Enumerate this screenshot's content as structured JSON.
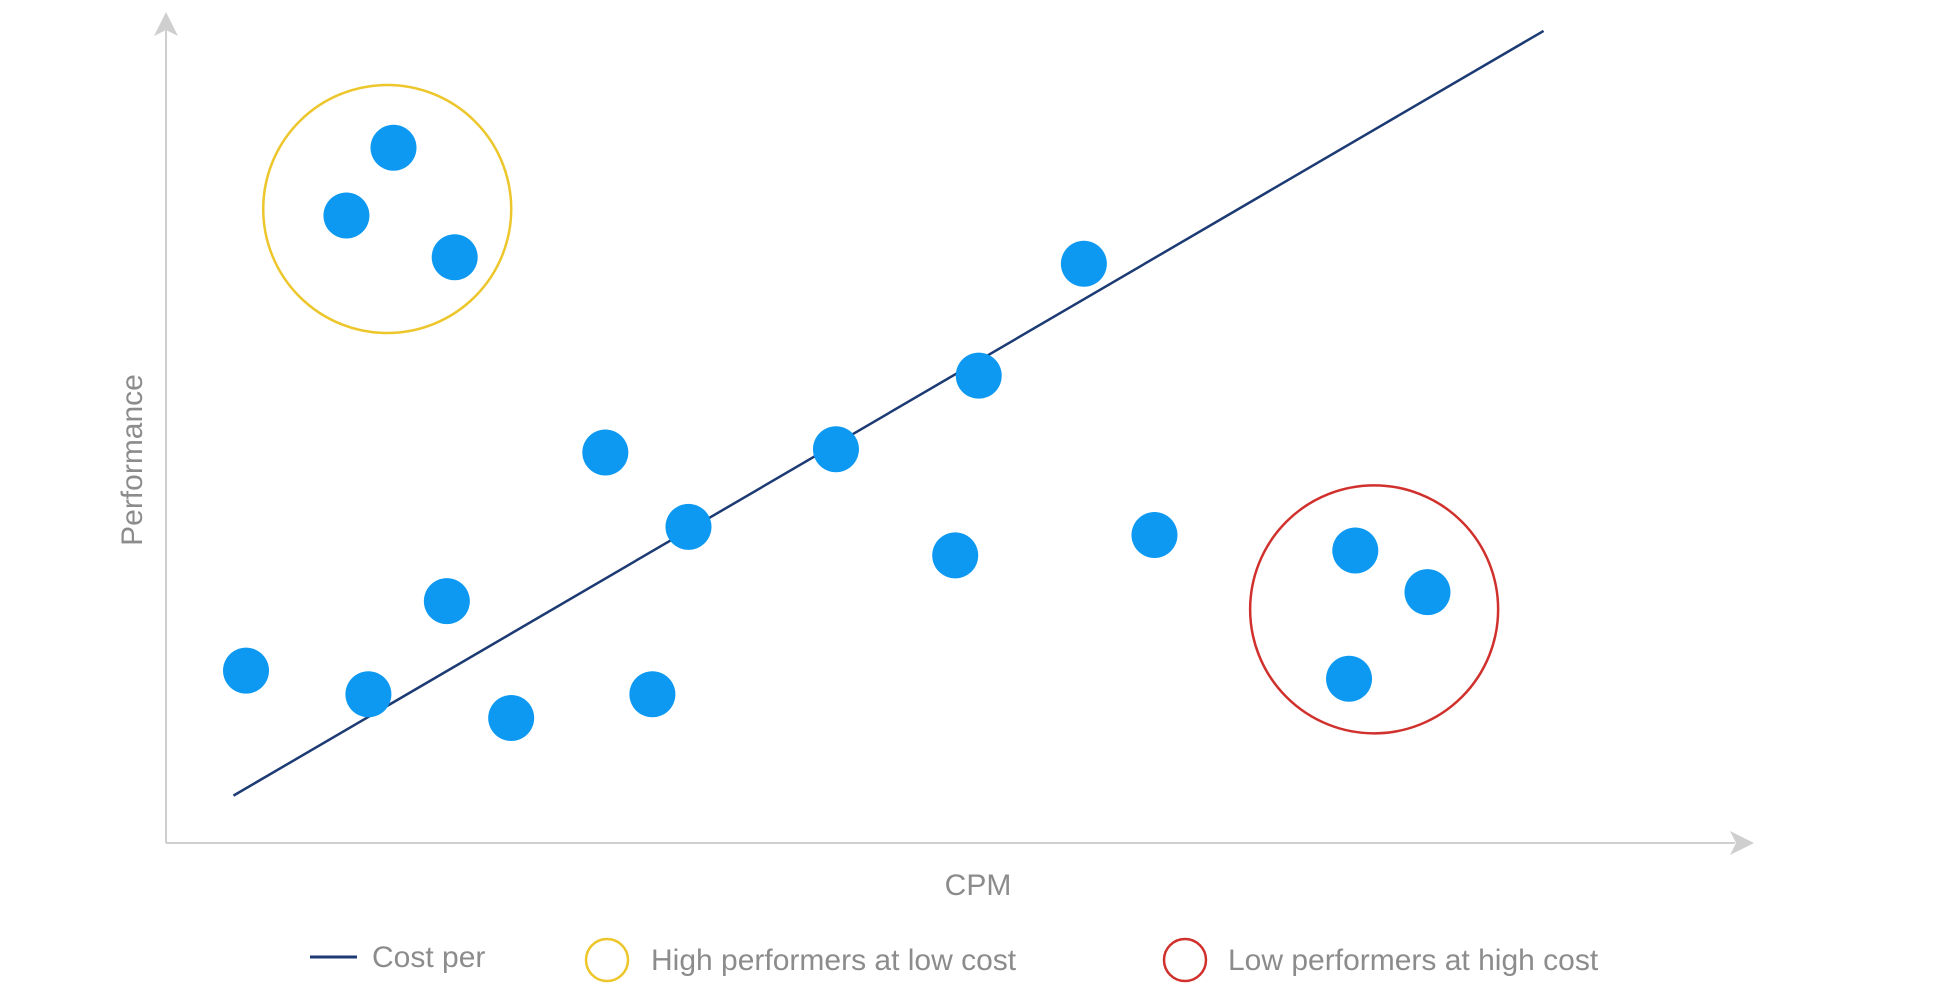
{
  "chart_data": {
    "type": "scatter",
    "title": "",
    "xlabel": "CPM",
    "ylabel": "Performance",
    "xlim": [
      0,
      100
    ],
    "ylim": [
      0,
      100
    ],
    "grid": false,
    "legend_placement": "bottom",
    "points": [
      {
        "x": 5.1,
        "y": 21.1
      },
      {
        "x": 12.9,
        "y": 18.2
      },
      {
        "x": 17.9,
        "y": 29.6
      },
      {
        "x": 22.0,
        "y": 15.3
      },
      {
        "x": 28.0,
        "y": 47.8
      },
      {
        "x": 31.0,
        "y": 18.2
      },
      {
        "x": 33.3,
        "y": 38.7
      },
      {
        "x": 42.7,
        "y": 48.2
      },
      {
        "x": 50.3,
        "y": 35.2
      },
      {
        "x": 51.8,
        "y": 57.2
      },
      {
        "x": 58.5,
        "y": 70.9
      },
      {
        "x": 63.0,
        "y": 37.7
      },
      {
        "x": 11.5,
        "y": 76.8
      },
      {
        "x": 14.5,
        "y": 85.1
      },
      {
        "x": 18.4,
        "y": 71.7
      },
      {
        "x": 75.8,
        "y": 35.8
      },
      {
        "x": 80.4,
        "y": 30.7
      },
      {
        "x": 75.4,
        "y": 20.1
      }
    ],
    "trend_line": {
      "name": "Cost per",
      "from": {
        "x": 4.3,
        "y": 5.8
      },
      "to": {
        "x": 87.8,
        "y": 99.4
      }
    },
    "highlights": [
      {
        "name": "High performers at low cost",
        "center": {
          "x": 14.1,
          "y": 77.6
        },
        "color": "#ecc62a"
      },
      {
        "name": "Low performers at high cost",
        "center": {
          "x": 77.0,
          "y": 28.6
        },
        "color": "#d0312d"
      }
    ],
    "colors": {
      "points": "#0d99f2",
      "trend": "#1c3a73",
      "axis": "#cfcfcf",
      "text": "#8c8c8c"
    }
  }
}
